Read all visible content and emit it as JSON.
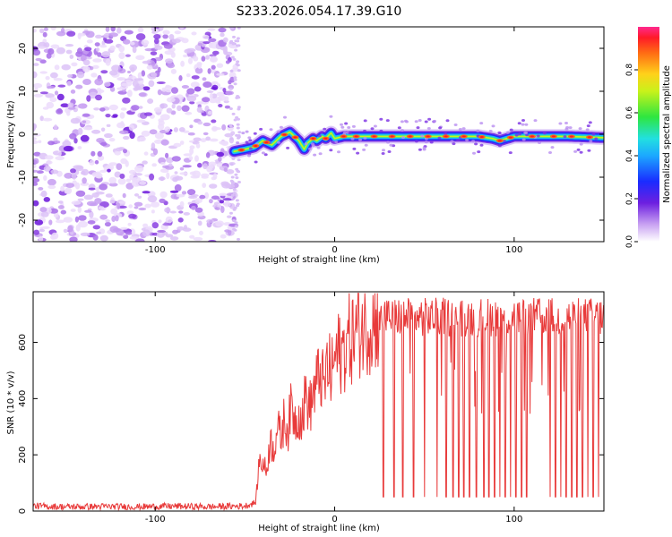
{
  "figure_title": "S233.2026.054.17.39.G10",
  "chart_data": [
    {
      "type": "heatmap",
      "title": "S233.2026.054.17.39.G10",
      "xlabel": "Height of straight line (km)",
      "ylabel": "Frequency (Hz)",
      "xlim": [
        -168,
        150
      ],
      "ylim": [
        -25,
        25
      ],
      "xticks": [
        -100,
        0,
        100
      ],
      "yticks": [
        -20,
        -10,
        0,
        10,
        20
      ],
      "xtick_labels": [
        "-100",
        "0",
        "100"
      ],
      "ytick_labels": [
        "-20",
        "-10",
        "0",
        "10",
        "20"
      ],
      "colorbar": {
        "label": "Normalized spectral amplitude",
        "range": [
          0.0,
          1.0
        ],
        "ticks": [
          0.0,
          0.2,
          0.4,
          0.6,
          0.8
        ],
        "tick_labels": [
          "0.0",
          "0.2",
          "0.4",
          "0.6",
          "0.8"
        ]
      },
      "noise_region_x": [
        -168,
        -55
      ],
      "signal_track": {
        "x": [
          -56,
          -50,
          -45,
          -40,
          -35,
          -30,
          -25,
          -20,
          -17,
          -15,
          -12,
          -10,
          -7,
          -5,
          -2,
          0,
          5,
          20,
          40,
          60,
          80,
          88,
          92,
          96,
          100,
          110,
          120,
          130,
          150
        ],
        "freq": [
          -4,
          -3.5,
          -3,
          -1.5,
          -2.5,
          -0.5,
          0.5,
          -1.5,
          -3.5,
          -2,
          -1,
          -1.5,
          -0.5,
          -1,
          0.3,
          -1,
          -0.5,
          -0.5,
          -0.5,
          -0.5,
          -0.5,
          -1,
          -1.5,
          -1,
          -0.5,
          -0.5,
          -0.5,
          -0.5,
          -0.8
        ]
      }
    },
    {
      "type": "line",
      "xlabel": "Height of straight line (km)",
      "ylabel": "SNR (10 * v/v)",
      "xlim": [
        -168,
        150
      ],
      "ylim": [
        0,
        780
      ],
      "xticks": [
        -100,
        0,
        100
      ],
      "yticks": [
        0,
        200,
        400,
        600
      ],
      "xtick_labels": [
        "-100",
        "0",
        "100"
      ],
      "ytick_labels": [
        "0",
        "200",
        "400",
        "600"
      ],
      "color": "#e83a3a",
      "series": [
        {
          "name": "SNR",
          "x": [
            -168,
            -150,
            -130,
            -110,
            -90,
            -70,
            -50,
            -44,
            -42,
            -40,
            -38,
            -36,
            -34,
            -32,
            -30,
            -28,
            -26,
            -24,
            -22,
            -20,
            -18,
            -16,
            -14,
            -12,
            -10,
            -8,
            -6,
            -4,
            -2,
            0,
            2,
            4,
            6,
            8,
            10,
            12,
            14,
            16,
            18,
            20,
            22,
            24,
            26,
            28,
            30,
            35,
            40,
            50,
            60,
            70,
            80,
            90,
            100,
            110,
            120,
            130,
            140,
            150
          ],
          "values": [
            18,
            15,
            16,
            15,
            17,
            15,
            18,
            30,
            180,
            170,
            140,
            250,
            220,
            300,
            260,
            330,
            290,
            380,
            320,
            350,
            330,
            420,
            360,
            420,
            450,
            500,
            430,
            520,
            480,
            540,
            560,
            560,
            590,
            610,
            620,
            640,
            650,
            660,
            665,
            670,
            675,
            680,
            685,
            690,
            690,
            690,
            690,
            690,
            690,
            690,
            690,
            690,
            690,
            690,
            690,
            690,
            690,
            690
          ]
        }
      ],
      "dropouts_x": [
        27,
        33,
        38,
        44,
        50,
        57,
        62,
        66,
        69,
        72,
        75,
        79,
        83,
        86,
        89,
        92,
        95,
        98,
        101,
        104,
        107,
        120,
        123,
        126,
        129,
        132,
        135,
        138,
        141,
        144,
        147
      ],
      "dropout_value": 50
    }
  ]
}
